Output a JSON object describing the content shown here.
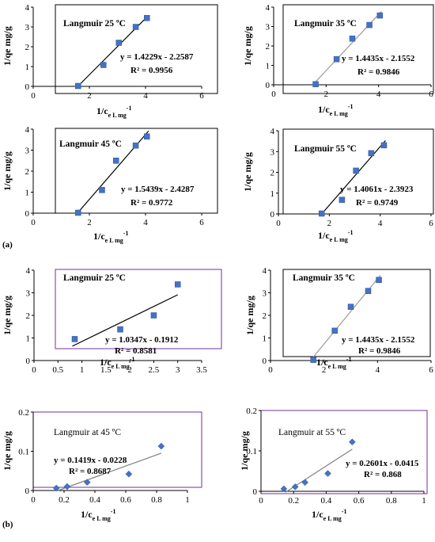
{
  "figure": {
    "part_a_label": "(a)",
    "part_b_label": "(b)"
  },
  "chart_data": [
    {
      "type": "scatter",
      "title": "Langmuir 25 ºC",
      "ylabel": "1/qe mg/g",
      "xlabel_main": "1/c",
      "xlabel_sub": "e  L mg",
      "xlabel_sup": "-1",
      "xlim": [
        0,
        6
      ],
      "ylim": [
        0,
        4
      ],
      "xticks": [
        "0",
        "2",
        "4",
        "6"
      ],
      "yticks": [
        "0",
        "1",
        "2",
        "3",
        "4"
      ],
      "points": [
        [
          1.6,
          0.02
        ],
        [
          2.5,
          1.08
        ],
        [
          3.05,
          2.2
        ],
        [
          3.65,
          3.0
        ],
        [
          4.05,
          3.45
        ]
      ],
      "fit": {
        "slope": 1.4229,
        "intercept": -2.2587,
        "equation": "y = 1.4229x - 2.2587",
        "r2": "R² = 0.9956"
      },
      "marker": "square",
      "color": "#4472c4",
      "line_color": "#000000",
      "frame": "#000000"
    },
    {
      "type": "scatter",
      "title": "Langmuir  35 ºC",
      "ylabel": "1/qe mg/g",
      "xlabel_main": "1/c",
      "xlabel_sub": "e  L mg",
      "xlabel_sup": "-1",
      "xlim": [
        0,
        6
      ],
      "ylim": [
        0,
        4
      ],
      "xticks": [
        "0",
        "2",
        "4",
        "6"
      ],
      "yticks": [
        "0",
        "1",
        "2",
        "3",
        "4"
      ],
      "points": [
        [
          1.6,
          0.03
        ],
        [
          2.4,
          1.32
        ],
        [
          3.0,
          2.38
        ],
        [
          3.65,
          3.08
        ],
        [
          4.05,
          3.57
        ]
      ],
      "fit": {
        "slope": 1.4435,
        "intercept": -2.1552,
        "equation": "y = 1.4435x - 2.1552",
        "r2": "R² = 0.9846"
      },
      "marker": "square",
      "color": "#4472c4",
      "line_color": "#9a9a9a",
      "frame": "#000000"
    },
    {
      "type": "scatter",
      "title": "Langmuir 45 ºC",
      "ylabel": "1/qe mg/g",
      "xlabel_main": "1/c",
      "xlabel_sub": "e  L mg",
      "xlabel_sup": "-1",
      "xlim": [
        0,
        6
      ],
      "ylim": [
        0,
        4
      ],
      "xticks": [
        "0",
        "2",
        "4",
        "6"
      ],
      "yticks": [
        "0",
        "1",
        "2",
        "3",
        "4"
      ],
      "points": [
        [
          1.6,
          0.02
        ],
        [
          2.45,
          1.1
        ],
        [
          2.95,
          2.5
        ],
        [
          3.65,
          3.22
        ],
        [
          4.05,
          3.65
        ]
      ],
      "fit": {
        "slope": 1.5439,
        "intercept": -2.4287,
        "equation": "y = 1.5439x - 2.4287",
        "r2": "R² = 0.9772"
      },
      "marker": "square",
      "color": "#4472c4",
      "line_color": "#000000",
      "frame": "#000000"
    },
    {
      "type": "scatter",
      "title": "Langmuir  55 ºC",
      "ylabel": "1/qe mg/g",
      "xlabel_main": "1/c",
      "xlabel_sub": "e  L mg",
      "xlabel_sup": "-1",
      "xlim": [
        0,
        6
      ],
      "ylim": [
        0,
        4
      ],
      "xticks": [
        "0",
        "2",
        "4",
        "6"
      ],
      "yticks": [
        "0",
        "1",
        "2",
        "3",
        "4"
      ],
      "points": [
        [
          1.7,
          0.02
        ],
        [
          2.5,
          0.68
        ],
        [
          3.05,
          2.08
        ],
        [
          3.65,
          2.92
        ],
        [
          4.15,
          3.3
        ]
      ],
      "fit": {
        "slope": 1.4061,
        "intercept": -2.3923,
        "equation": "y = 1.4061x - 2.3923",
        "r2": "R² = 0.9749"
      },
      "marker": "square",
      "color": "#4472c4",
      "line_color": "#000000",
      "frame": "#000000"
    },
    {
      "type": "scatter",
      "title": "Langmuir 25 ºC",
      "ylabel": "1/qe mg/g",
      "xlabel_main": "1/c",
      "xlabel_sub": "e  L mg",
      "xlabel_sup": "-1",
      "xlim": [
        0,
        3.5
      ],
      "ylim": [
        0,
        4
      ],
      "xticks": [
        "0",
        "0.5",
        "1",
        "1.5",
        "2",
        "2.5",
        "3",
        "3.5"
      ],
      "yticks": [
        "0",
        "1",
        "2",
        "3",
        "4"
      ],
      "points": [
        [
          0.85,
          0.95
        ],
        [
          1.8,
          1.38
        ],
        [
          2.5,
          2.0
        ],
        [
          3.0,
          3.37
        ]
      ],
      "fit": {
        "slope": 1.0347,
        "intercept": -0.1912,
        "equation": "y = 1.0347x - 0.1912",
        "r2": "R² = 0.8581"
      },
      "marker": "square",
      "color": "#4472c4",
      "line_color": "#000000",
      "frame": "#7030a0"
    },
    {
      "type": "scatter",
      "title": "Langmuir  35 ºC",
      "ylabel": "1/qe mg/g",
      "xlabel_main": "1/c",
      "xlabel_sub": "e  L mg",
      "xlabel_sup": "-1",
      "xlim": [
        0,
        6
      ],
      "ylim": [
        0,
        4
      ],
      "xticks": [
        "0",
        "2",
        "4",
        "6"
      ],
      "yticks": [
        "0",
        "1",
        "2",
        "3",
        "4"
      ],
      "points": [
        [
          1.6,
          0.03
        ],
        [
          2.4,
          1.32
        ],
        [
          3.0,
          2.38
        ],
        [
          3.65,
          3.08
        ],
        [
          4.05,
          3.57
        ]
      ],
      "fit": {
        "slope": 1.4435,
        "intercept": -2.1552,
        "equation": "y = 1.4435x - 2.1552",
        "r2": "R² = 0.9846"
      },
      "marker": "square",
      "color": "#4472c4",
      "line_color": "#9a9a9a",
      "frame": "#000000"
    },
    {
      "type": "scatter",
      "title": "Langmuir at 45 ºC",
      "ylabel": "1/qe mg/g",
      "xlabel_main": "1/c",
      "xlabel_sub": "e  L mg",
      "xlabel_sup": "-1",
      "xlim": [
        0,
        1
      ],
      "ylim": [
        0,
        0.2
      ],
      "xticks": [
        "0",
        "0.2",
        "0.4",
        "0.6",
        "0.8",
        "1"
      ],
      "yticks": [
        "0",
        "0.1",
        "0.2"
      ],
      "points": [
        [
          0.15,
          0.006
        ],
        [
          0.22,
          0.01
        ],
        [
          0.35,
          0.021
        ],
        [
          0.62,
          0.042
        ],
        [
          0.83,
          0.113
        ]
      ],
      "fit": {
        "slope": 0.1419,
        "intercept": -0.0228,
        "equation": "y = 0.1419x - 0.0228",
        "r2": "R² = 0.8687"
      },
      "marker": "diamond",
      "color": "#4472c4",
      "line_color": "#7f7f7f",
      "frame": "#7030a0"
    },
    {
      "type": "scatter",
      "title": "Langmuir at 55 ºC",
      "ylabel": "1/qe mg/g",
      "xlabel_main": "1/c",
      "xlabel_sub": "e  L mg",
      "xlabel_sup": "-1",
      "xlim": [
        0,
        1
      ],
      "ylim": [
        0,
        0.2
      ],
      "xticks": [
        "0",
        "0.2",
        "0.4",
        "0.6",
        "0.8",
        "1"
      ],
      "yticks": [
        "0",
        "0.1",
        "0.2"
      ],
      "points": [
        [
          0.14,
          0.006
        ],
        [
          0.21,
          0.011
        ],
        [
          0.27,
          0.022
        ],
        [
          0.41,
          0.044
        ],
        [
          0.56,
          0.122
        ]
      ],
      "fit": {
        "slope": 0.2601,
        "intercept": -0.0415,
        "equation": "y = 0.2601x - 0.0415",
        "r2": "R² = 0.868"
      },
      "marker": "diamond",
      "color": "#4472c4",
      "line_color": "#7f7f7f",
      "frame": "#7030a0"
    }
  ]
}
